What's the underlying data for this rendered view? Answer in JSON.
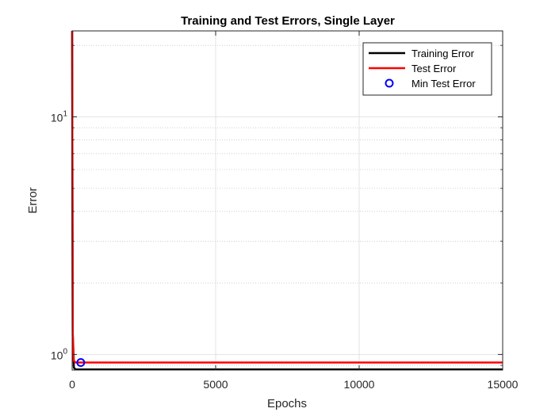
{
  "chart_data": {
    "type": "line",
    "title": "Training and Test Errors, Single Layer",
    "xlabel": "Epochs",
    "ylabel": "Error",
    "xlim": [
      0,
      15000
    ],
    "ylim": [
      0.86,
      23
    ],
    "yscale": "log",
    "grid": true,
    "legend_position": "top-right",
    "x_ticks": [
      0,
      5000,
      10000,
      15000
    ],
    "x_tick_labels": [
      "0",
      "5000",
      "10000",
      "15000"
    ],
    "y_ticks": [
      {
        "value": 1,
        "base": "10",
        "exp": "0"
      },
      {
        "value": 10,
        "base": "10",
        "exp": "1"
      }
    ],
    "series": [
      {
        "name": "Training Error",
        "color": "#000000",
        "x": [
          0,
          20,
          60,
          120,
          15000
        ],
        "y": [
          23,
          1.2,
          0.88,
          0.865,
          0.865
        ]
      },
      {
        "name": "Test Error",
        "color": "#ff0000",
        "x": [
          0,
          20,
          60,
          120,
          15000
        ],
        "y": [
          23,
          1.25,
          0.94,
          0.925,
          0.925
        ]
      }
    ],
    "markers": [
      {
        "name": "Min Test Error",
        "color": "#0000ff",
        "x": 300,
        "y": 0.925
      }
    ]
  }
}
